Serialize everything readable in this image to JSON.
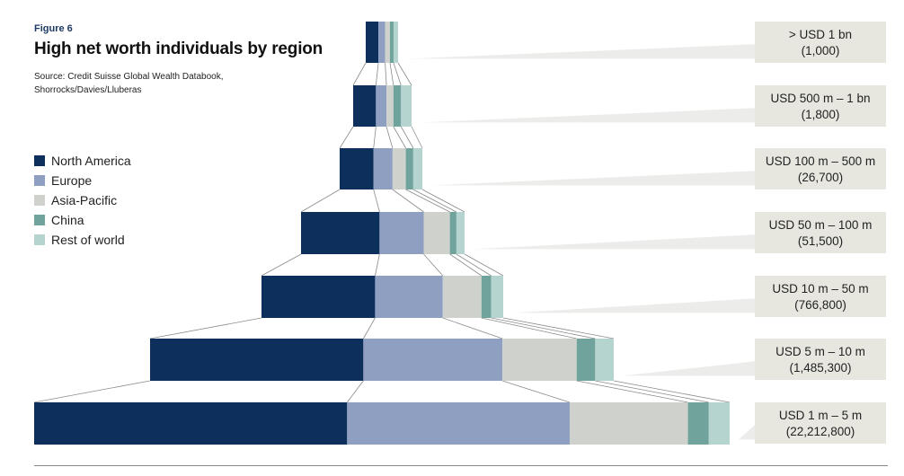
{
  "figure_label": "Figure 6",
  "title": "High net worth individuals by region",
  "source": "Source: Credit Suisse Global Wealth Databook, Shorrocks/Davies/Lluberas",
  "colors": {
    "north_america": "#0d2f5c",
    "europe": "#8f9fc2",
    "asia_pacific": "#cfd2cc",
    "china": "#6fa39c",
    "rest_of_world": "#b5d3cf",
    "label_box": "#e7e7e0"
  },
  "chart_data": {
    "type": "bar",
    "title": "High net worth individuals by region",
    "series_names": [
      "North America",
      "Europe",
      "Asia-Pacific",
      "China",
      "Rest of world"
    ],
    "tiers": [
      {
        "range": "> USD 1 bn",
        "count": "(1,000)",
        "shares": [
          0.39,
          0.21,
          0.15,
          0.11,
          0.14
        ]
      },
      {
        "range": "USD 500 m – 1 bn",
        "count": "(1,800)",
        "shares": [
          0.39,
          0.18,
          0.12,
          0.13,
          0.18
        ]
      },
      {
        "range": "USD 100 m – 500 m",
        "count": "(26,700)",
        "shares": [
          0.41,
          0.23,
          0.16,
          0.09,
          0.11
        ]
      },
      {
        "range": "USD 50 m – 100 m",
        "count": "(51,500)",
        "shares": [
          0.48,
          0.27,
          0.16,
          0.04,
          0.05
        ]
      },
      {
        "range": "USD 10 m – 50 m",
        "count": "(766,800)",
        "shares": [
          0.47,
          0.28,
          0.16,
          0.04,
          0.05
        ]
      },
      {
        "range": "USD 5 m – 10 m",
        "count": "(1,485,300)",
        "shares": [
          0.46,
          0.3,
          0.16,
          0.04,
          0.04
        ]
      },
      {
        "range": "USD 1 m – 5 m",
        "count": "(22,212,800)",
        "shares": [
          0.45,
          0.32,
          0.17,
          0.03,
          0.03
        ]
      }
    ]
  }
}
